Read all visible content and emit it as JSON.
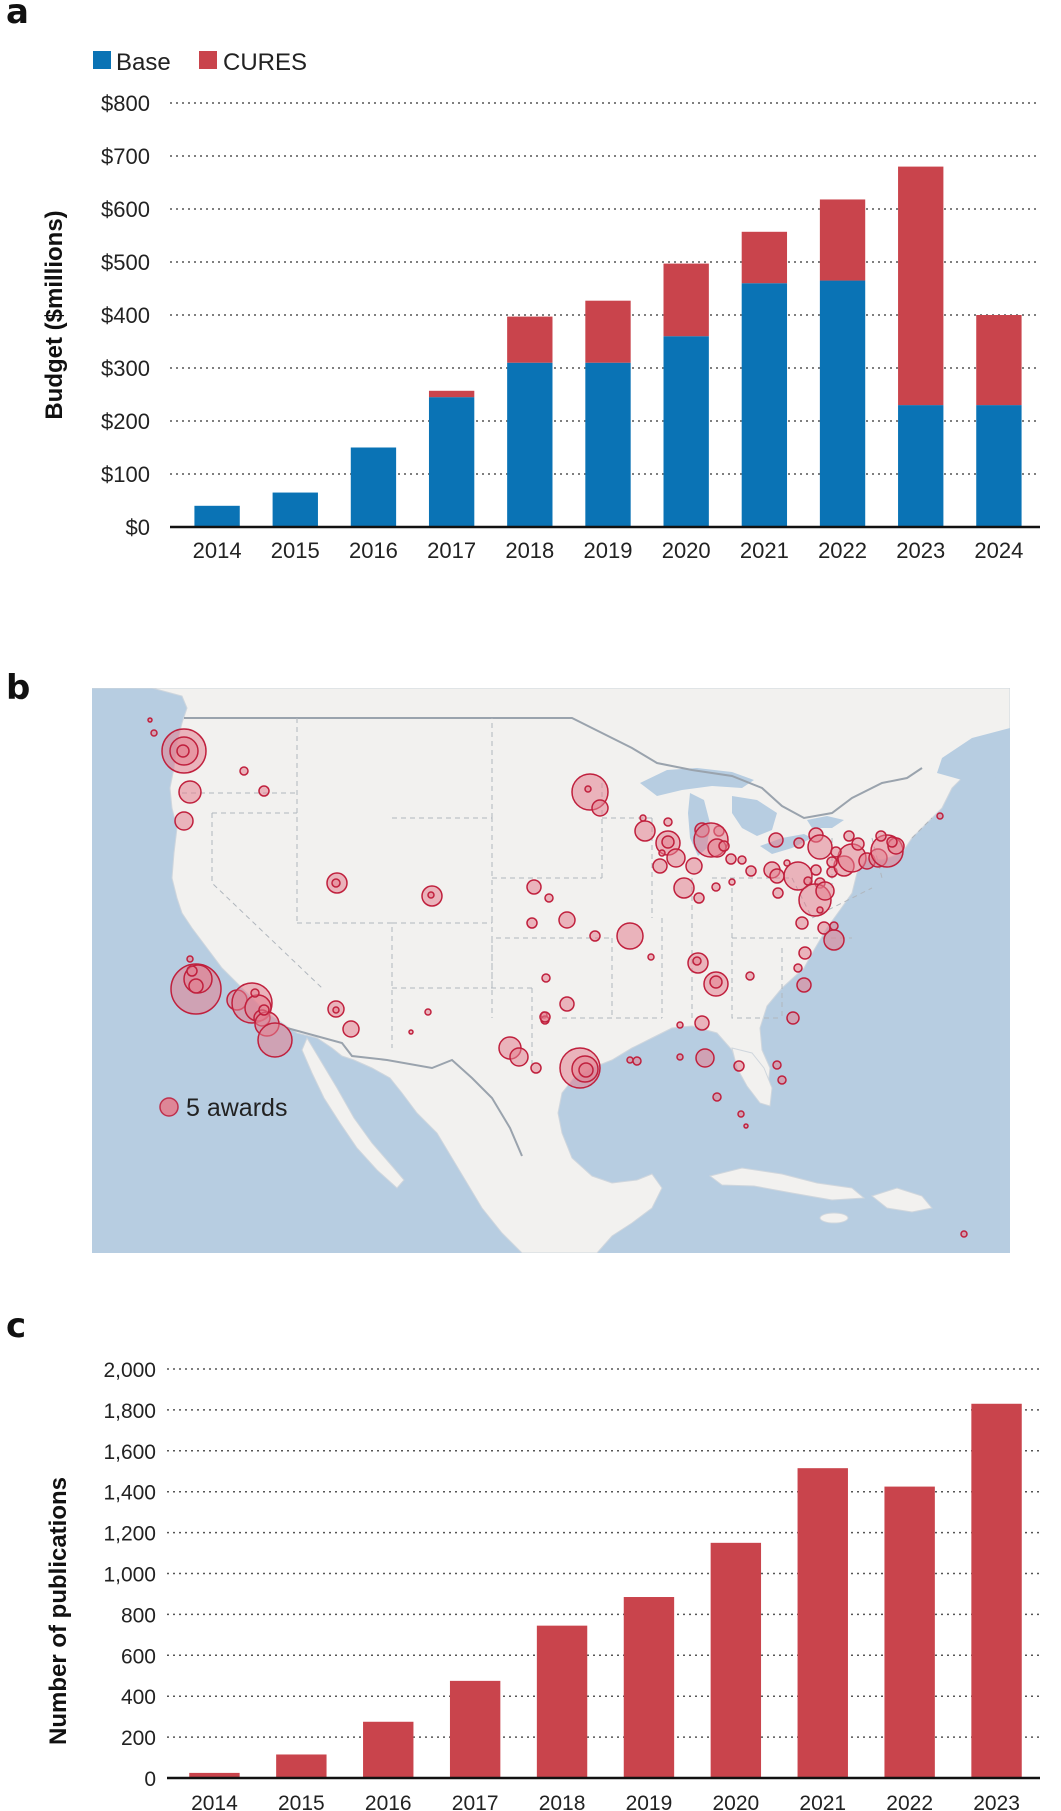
{
  "panels": {
    "a": {
      "letter": "a"
    },
    "b": {
      "letter": "b"
    },
    "c": {
      "letter": "c"
    }
  },
  "colors": {
    "base": "#0a73b5",
    "cures": "#c9444c",
    "grid": "#555555",
    "axis": "#111111",
    "map_water": "#b7cde1",
    "map_land": "#f2f1ef",
    "bubble_fill": "#e37f90",
    "bubble_stroke": "#c0203d"
  },
  "chart_data": [
    {
      "type": "bar",
      "stacked": true,
      "categories": [
        "2014",
        "2015",
        "2016",
        "2017",
        "2018",
        "2019",
        "2020",
        "2021",
        "2022",
        "2023",
        "2024"
      ],
      "series": [
        {
          "name": "Base",
          "values": [
            40,
            65,
            150,
            245,
            310,
            310,
            360,
            460,
            465,
            230,
            230
          ]
        },
        {
          "name": "CURES",
          "values": [
            0,
            0,
            0,
            12,
            87,
            117,
            137,
            97,
            153,
            450,
            170
          ]
        }
      ],
      "ylabel": "Budget ($millions)",
      "xlabel": "",
      "ylim": [
        0,
        800
      ],
      "yticks": [
        "$0",
        "$100",
        "$200",
        "$300",
        "$400",
        "$500",
        "$600",
        "$700",
        "$800"
      ],
      "ytick_values": [
        0,
        100,
        200,
        300,
        400,
        500,
        600,
        700,
        800
      ],
      "grid": "dotted horizontal",
      "legend_position": "top-left"
    },
    {
      "type": "bar",
      "categories": [
        "2014",
        "2015",
        "2016",
        "2017",
        "2018",
        "2019",
        "2020",
        "2021",
        "2022",
        "2023"
      ],
      "series": [
        {
          "values": [
            25,
            115,
            275,
            475,
            745,
            885,
            1150,
            1515,
            1425,
            1830
          ]
        }
      ],
      "ylabel": "Number of publications",
      "xlabel": "",
      "ylim": [
        0,
        2000
      ],
      "yticks": [
        "0",
        "200",
        "400",
        "600",
        "800",
        "1,000",
        "1,200",
        "1,400",
        "1,600",
        "1,800",
        "2,000"
      ],
      "ytick_values": [
        0,
        200,
        400,
        600,
        800,
        1000,
        1200,
        1400,
        1600,
        1800,
        2000
      ],
      "grid": "dotted horizontal"
    }
  ],
  "map": {
    "legend_label": "5 awards"
  }
}
